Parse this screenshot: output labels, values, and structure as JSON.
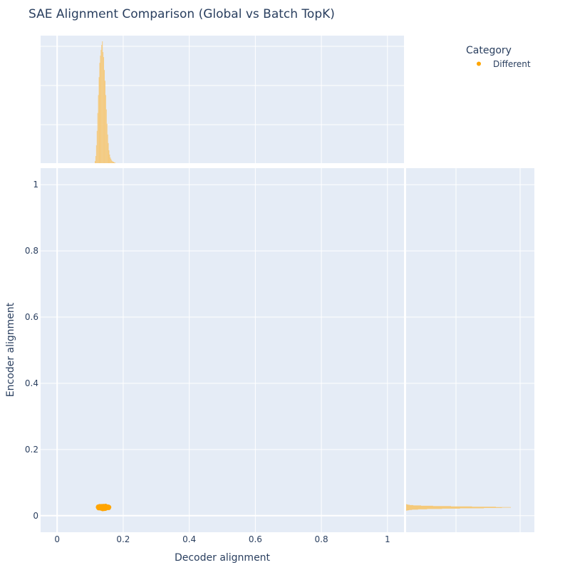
{
  "title": "SAE Alignment Comparison (Global vs Batch TopK)",
  "legend": {
    "title": "Category",
    "items": [
      {
        "label": "Different",
        "color": "#FFA500"
      }
    ],
    "placement": "top-right"
  },
  "colors": {
    "plot_bg": "#E5ECF6",
    "grid": "#FFFFFF",
    "marker": "#FFA500",
    "hist_fill": "#F5C97A",
    "text": "#2A3F5F"
  },
  "chart_data": {
    "type": "scatter",
    "title": "SAE Alignment Comparison (Global vs Batch TopK)",
    "xlabel": "Decoder alignment",
    "ylabel": "Encoder alignment",
    "xlim": [
      -0.05,
      1.05
    ],
    "ylim": [
      -0.05,
      1.05
    ],
    "x_ticks": [
      0,
      0.2,
      0.4,
      0.6,
      0.8,
      1
    ],
    "x_tick_labels": [
      "0",
      "0.2",
      "0.4",
      "0.6",
      "0.8",
      "1"
    ],
    "y_ticks": [
      0,
      0.2,
      0.4,
      0.6,
      0.8,
      1
    ],
    "y_tick_labels": [
      "0",
      "0.2",
      "0.4",
      "0.6",
      "0.8",
      "1"
    ],
    "grid": true,
    "series": [
      {
        "name": "Different",
        "color": "#FFA500",
        "cluster": {
          "x_center": 0.14,
          "x_range": [
            0.12,
            0.19
          ],
          "y_center": 0.025,
          "y_range": [
            0.016,
            0.036
          ]
        }
      }
    ],
    "marginal_x_histogram": {
      "bins": [
        0.114,
        0.116,
        0.118,
        0.12,
        0.122,
        0.124,
        0.126,
        0.128,
        0.13,
        0.132,
        0.134,
        0.136,
        0.138,
        0.14,
        0.142,
        0.144,
        0.146,
        0.148,
        0.15,
        0.152,
        0.154,
        0.156,
        0.158,
        0.16,
        0.162,
        0.164,
        0.166,
        0.168,
        0.17,
        0.172,
        0.174
      ],
      "counts": [
        3,
        10,
        25,
        45,
        70,
        95,
        120,
        140,
        150,
        158,
        165,
        170,
        155,
        148,
        130,
        115,
        95,
        75,
        55,
        40,
        28,
        18,
        12,
        8,
        6,
        4,
        3,
        2,
        2,
        1,
        1
      ]
    },
    "marginal_y_histogram": {
      "bins": [
        0.016,
        0.017,
        0.018,
        0.019,
        0.02,
        0.021,
        0.022,
        0.023,
        0.024,
        0.025,
        0.026,
        0.027,
        0.028,
        0.029,
        0.03,
        0.031,
        0.032,
        0.033,
        0.034
      ],
      "counts": [
        2,
        5,
        10,
        20,
        35,
        60,
        90,
        130,
        160,
        175,
        150,
        110,
        75,
        45,
        25,
        12,
        6,
        3,
        1
      ]
    }
  }
}
